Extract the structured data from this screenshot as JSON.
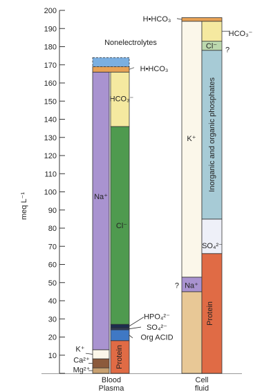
{
  "chart_data": {
    "type": "bar",
    "stacked": true,
    "ylabel": "meq L⁻¹",
    "ylim": [
      0,
      200
    ],
    "yticks": [
      0,
      10,
      20,
      30,
      40,
      50,
      60,
      70,
      80,
      90,
      100,
      110,
      120,
      130,
      140,
      150,
      160,
      170,
      180,
      190,
      200
    ],
    "ytick_labels": [
      "",
      "10",
      "20",
      "30",
      "40",
      "50",
      "60",
      "70",
      "80",
      "90",
      "100",
      "110",
      "120",
      "130",
      "140",
      "150",
      "160",
      "170",
      "180",
      "190",
      "200"
    ],
    "grid": false,
    "categories": [
      {
        "line1": "Blood",
        "line2": "Plasma"
      },
      {
        "line1": "Cell",
        "line2": "fluid"
      }
    ],
    "columns": [
      {
        "category": "Blood Plasma",
        "side": "cations",
        "segments": [
          {
            "label": "Mg²⁺",
            "from": 0,
            "to": 3,
            "color": "#c8a070"
          },
          {
            "label": "Ca²⁺",
            "from": 3,
            "to": 8,
            "color": "#8c5a3c"
          },
          {
            "label": "K⁺",
            "from": 8,
            "to": 13,
            "color": "#fbf7ea"
          },
          {
            "label": "Na⁺",
            "from": 13,
            "to": 166,
            "color": "#a993d0"
          }
        ]
      },
      {
        "category": "Blood Plasma",
        "side": "anions",
        "segments": [
          {
            "label": "Protein",
            "from": 0,
            "to": 18,
            "color": "#e06b45"
          },
          {
            "label": "Org ACID",
            "from": 18,
            "to": 24,
            "color": "#3f78c4"
          },
          {
            "label": "SO₄²⁻",
            "from": 24,
            "to": 25,
            "color": "#2d3b5e"
          },
          {
            "label": "HPO₄²⁻",
            "from": 25,
            "to": 27,
            "color": "#1d2d4e"
          },
          {
            "label": "Cl⁻",
            "from": 27,
            "to": 136,
            "color": "#4f9a4f"
          },
          {
            "label": "HCO₃⁻",
            "from": 136,
            "to": 166,
            "color": "#f5e9a0"
          }
        ]
      },
      {
        "category": "Blood Plasma",
        "side": "top",
        "segments": [
          {
            "label": "H•HCO₃",
            "from": 166,
            "to": 169,
            "color": "#e7a256"
          },
          {
            "label": "Nonelectrolytes",
            "from": 169,
            "to": 174,
            "color": "#7bafe0",
            "dashed": true
          }
        ]
      },
      {
        "category": "Cell fluid",
        "side": "cations",
        "segments": [
          {
            "label": "",
            "from": 0,
            "to": 45,
            "color": "#e8c896"
          },
          {
            "label": "Na⁺",
            "from": 45,
            "to": 53,
            "color": "#a993d0"
          },
          {
            "label": "K⁺",
            "from": 53,
            "to": 194,
            "color": "#fbf7ea"
          }
        ]
      },
      {
        "category": "Cell fluid",
        "side": "anions",
        "segments": [
          {
            "label": "Protein",
            "from": 0,
            "to": 66,
            "color": "#e06b45"
          },
          {
            "label": "SO₄²⁻",
            "from": 66,
            "to": 85,
            "color": "#eef0f8"
          },
          {
            "label": "Inorganic and organic phosphates",
            "from": 85,
            "to": 178,
            "color": "#a7cbd6"
          },
          {
            "label": "Cl⁻",
            "from": 178,
            "to": 183,
            "color": "#bcd8ae"
          },
          {
            "label": "HCO₃⁻",
            "from": 183,
            "to": 194,
            "color": "#f5e9a0"
          }
        ]
      },
      {
        "category": "Cell fluid",
        "side": "top",
        "segments": [
          {
            "label": "H•HCO₃",
            "from": 194,
            "to": 196,
            "color": "#e7a256"
          }
        ]
      }
    ],
    "annotations": [
      {
        "text": "?",
        "near": "Cell fluid Na⁺"
      },
      {
        "text": "?",
        "near": "Cell fluid Cl⁻"
      }
    ]
  }
}
